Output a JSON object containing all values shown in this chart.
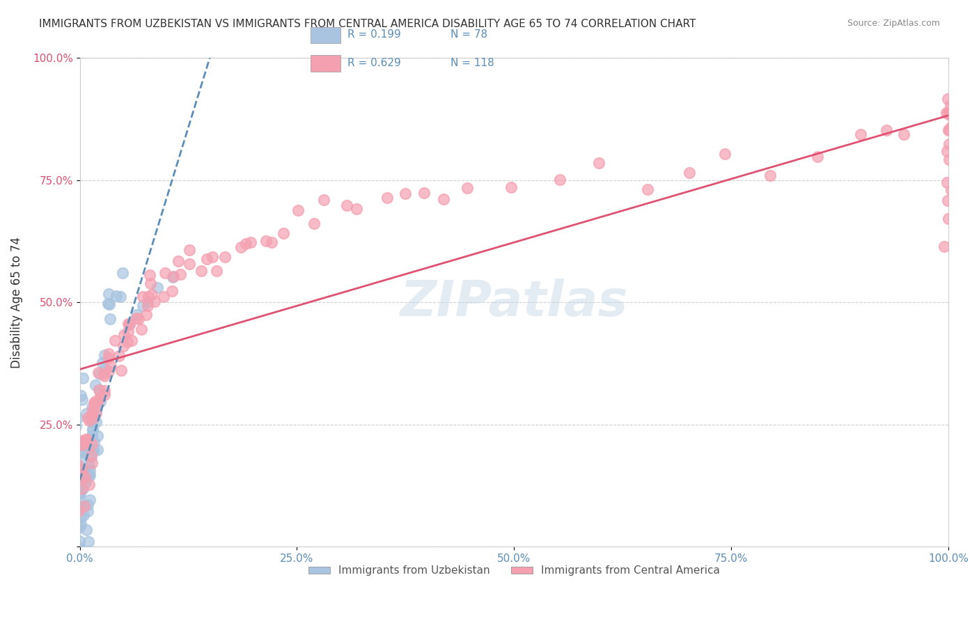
{
  "title": "IMMIGRANTS FROM UZBEKISTAN VS IMMIGRANTS FROM CENTRAL AMERICA DISABILITY AGE 65 TO 74 CORRELATION CHART",
  "source": "Source: ZipAtlas.com",
  "xlabel": "",
  "ylabel": "Disability Age 65 to 74",
  "xlim": [
    0.0,
    1.0
  ],
  "ylim": [
    0.0,
    1.0
  ],
  "xticks": [
    0.0,
    0.25,
    0.5,
    0.75,
    1.0
  ],
  "yticks": [
    0.0,
    0.25,
    0.5,
    0.75,
    1.0
  ],
  "xtick_labels": [
    "0.0%",
    "25.0%",
    "50.0%",
    "75.0%",
    "100.0%"
  ],
  "ytick_labels": [
    "",
    "25.0%",
    "50.0%",
    "75.0%",
    "100.0%"
  ],
  "series": [
    {
      "name": "Immigrants from Uzbekistan",
      "color": "#a8c4e0",
      "R": 0.199,
      "N": 78,
      "line_color": "#5b8db8",
      "line_style": "dashed",
      "x": [
        0.0,
        0.0,
        0.0,
        0.0,
        0.0,
        0.0,
        0.0,
        0.0,
        0.0,
        0.0,
        0.0,
        0.0,
        0.0,
        0.0,
        0.0,
        0.001,
        0.001,
        0.001,
        0.001,
        0.001,
        0.002,
        0.002,
        0.002,
        0.002,
        0.003,
        0.003,
        0.003,
        0.004,
        0.004,
        0.004,
        0.005,
        0.005,
        0.005,
        0.006,
        0.006,
        0.007,
        0.007,
        0.008,
        0.008,
        0.009,
        0.009,
        0.01,
        0.01,
        0.011,
        0.011,
        0.012,
        0.013,
        0.013,
        0.014,
        0.015,
        0.015,
        0.016,
        0.017,
        0.018,
        0.018,
        0.019,
        0.02,
        0.021,
        0.022,
        0.023,
        0.024,
        0.025,
        0.027,
        0.028,
        0.03,
        0.032,
        0.033,
        0.035,
        0.038,
        0.04,
        0.05,
        0.055,
        0.06,
        0.065,
        0.07,
        0.08,
        0.09,
        0.1
      ],
      "y": [
        0.0,
        0.0,
        0.05,
        0.08,
        0.1,
        0.12,
        0.15,
        0.18,
        0.2,
        0.22,
        0.25,
        0.28,
        0.3,
        0.33,
        0.35,
        0.0,
        0.05,
        0.1,
        0.15,
        0.2,
        0.0,
        0.05,
        0.1,
        0.15,
        0.05,
        0.1,
        0.15,
        0.05,
        0.1,
        0.15,
        0.1,
        0.15,
        0.2,
        0.1,
        0.15,
        0.1,
        0.15,
        0.1,
        0.15,
        0.1,
        0.15,
        0.15,
        0.2,
        0.15,
        0.2,
        0.15,
        0.2,
        0.25,
        0.2,
        0.2,
        0.25,
        0.2,
        0.25,
        0.2,
        0.25,
        0.25,
        0.25,
        0.3,
        0.3,
        0.3,
        0.3,
        0.35,
        0.35,
        0.4,
        0.4,
        0.45,
        0.5,
        0.5,
        0.5,
        0.5,
        0.52,
        0.55,
        0.45,
        0.48,
        0.5,
        0.5,
        0.55,
        0.55
      ]
    },
    {
      "name": "Immigrants from Central America",
      "color": "#f4a0b0",
      "R": 0.629,
      "N": 118,
      "line_color": "#e05070",
      "line_style": "solid",
      "x": [
        0.0,
        0.0,
        0.0,
        0.001,
        0.002,
        0.003,
        0.003,
        0.004,
        0.004,
        0.005,
        0.005,
        0.006,
        0.006,
        0.007,
        0.008,
        0.008,
        0.009,
        0.01,
        0.011,
        0.012,
        0.013,
        0.014,
        0.015,
        0.016,
        0.017,
        0.018,
        0.02,
        0.021,
        0.022,
        0.024,
        0.025,
        0.026,
        0.028,
        0.03,
        0.031,
        0.033,
        0.035,
        0.036,
        0.038,
        0.04,
        0.042,
        0.045,
        0.047,
        0.05,
        0.052,
        0.055,
        0.057,
        0.06,
        0.063,
        0.065,
        0.068,
        0.07,
        0.073,
        0.075,
        0.078,
        0.08,
        0.083,
        0.085,
        0.088,
        0.09,
        0.095,
        0.1,
        0.105,
        0.11,
        0.115,
        0.12,
        0.125,
        0.13,
        0.14,
        0.145,
        0.15,
        0.16,
        0.17,
        0.18,
        0.19,
        0.2,
        0.21,
        0.22,
        0.23,
        0.25,
        0.27,
        0.28,
        0.3,
        0.32,
        0.35,
        0.37,
        0.4,
        0.42,
        0.45,
        0.5,
        0.55,
        0.6,
        0.65,
        0.7,
        0.75,
        0.8,
        0.85,
        0.9,
        0.93,
        0.95,
        1.0,
        1.0,
        1.0,
        1.0,
        1.0,
        1.0,
        1.0,
        1.0,
        1.0,
        1.0,
        1.0,
        1.0,
        1.0,
        1.0,
        1.0,
        1.0,
        1.0,
        1.0
      ],
      "y": [
        0.1,
        0.15,
        0.2,
        0.15,
        0.1,
        0.12,
        0.18,
        0.15,
        0.2,
        0.15,
        0.2,
        0.17,
        0.22,
        0.2,
        0.18,
        0.25,
        0.22,
        0.2,
        0.22,
        0.25,
        0.25,
        0.28,
        0.25,
        0.28,
        0.3,
        0.28,
        0.3,
        0.32,
        0.3,
        0.32,
        0.3,
        0.35,
        0.32,
        0.35,
        0.33,
        0.35,
        0.38,
        0.36,
        0.38,
        0.4,
        0.38,
        0.4,
        0.42,
        0.4,
        0.42,
        0.45,
        0.43,
        0.45,
        0.47,
        0.45,
        0.48,
        0.47,
        0.5,
        0.48,
        0.5,
        0.52,
        0.5,
        0.52,
        0.55,
        0.5,
        0.52,
        0.55,
        0.53,
        0.55,
        0.58,
        0.55,
        0.58,
        0.6,
        0.55,
        0.58,
        0.6,
        0.58,
        0.6,
        0.62,
        0.6,
        0.62,
        0.65,
        0.63,
        0.65,
        0.68,
        0.65,
        0.68,
        0.7,
        0.68,
        0.7,
        0.72,
        0.7,
        0.72,
        0.75,
        0.72,
        0.75,
        0.78,
        0.75,
        0.78,
        0.8,
        0.78,
        0.8,
        0.82,
        0.85,
        0.83,
        0.6,
        0.65,
        0.7,
        0.72,
        0.75,
        0.78,
        0.8,
        0.82,
        0.85,
        0.88,
        0.9,
        0.85,
        0.88,
        0.9,
        0.92,
        0.85,
        0.88,
        0.9
      ]
    }
  ],
  "watermark": "ZIPatlas",
  "legend_loc": "upper left",
  "background_color": "#ffffff",
  "grid_color": "#d0d0d0",
  "title_fontsize": 11,
  "axis_label_color": "#5b8db8",
  "tick_label_color_x": "#5b8db8",
  "tick_label_color_y": "#e05070"
}
